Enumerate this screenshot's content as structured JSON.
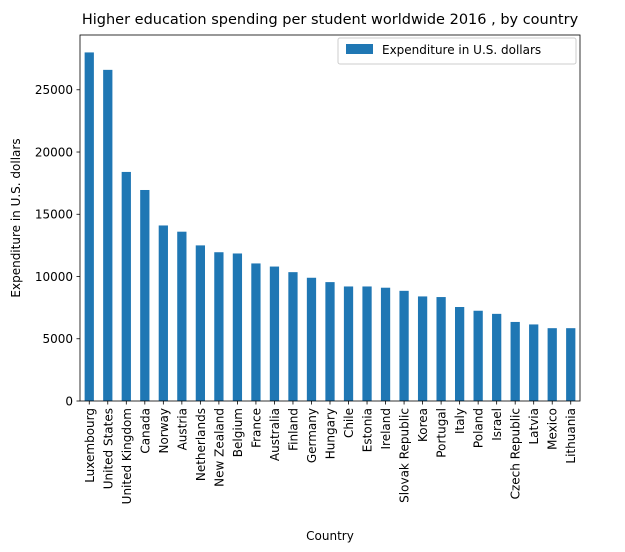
{
  "chart_data": {
    "type": "bar",
    "title": "Higher education spending per student worldwide 2016 , by country",
    "xlabel": "Country",
    "ylabel": "Expenditure in U.S. dollars",
    "legend": {
      "position": "top-right",
      "entries": [
        "Expenditure in U.S. dollars"
      ]
    },
    "grid": false,
    "ylim": [
      0,
      29400
    ],
    "yticks": [
      0,
      5000,
      10000,
      15000,
      20000,
      25000
    ],
    "color": "#1f77b4",
    "categories": [
      "Luxembourg",
      "United States",
      "United Kingdom",
      "Canada",
      "Norway",
      "Austria",
      "Netherlands",
      "New Zealand",
      "Belgium",
      "France",
      "Australia",
      "Finland",
      "Germany",
      "Hungary",
      "Chile",
      "Estonia",
      "Ireland",
      "Slovak Republic",
      "Korea",
      "Portugal",
      "Italy",
      "Poland",
      "Israel",
      "Czech Republic",
      "Latvia",
      "Mexico",
      "Lithuania"
    ],
    "series": [
      {
        "name": "Expenditure in U.S. dollars",
        "values": [
          28000,
          26600,
          18400,
          16950,
          14100,
          13600,
          12500,
          11950,
          11850,
          11050,
          10800,
          10350,
          9900,
          9550,
          9200,
          9200,
          9100,
          8850,
          8400,
          8350,
          7550,
          7250,
          7000,
          6350,
          6150,
          5850,
          5850
        ]
      }
    ]
  }
}
